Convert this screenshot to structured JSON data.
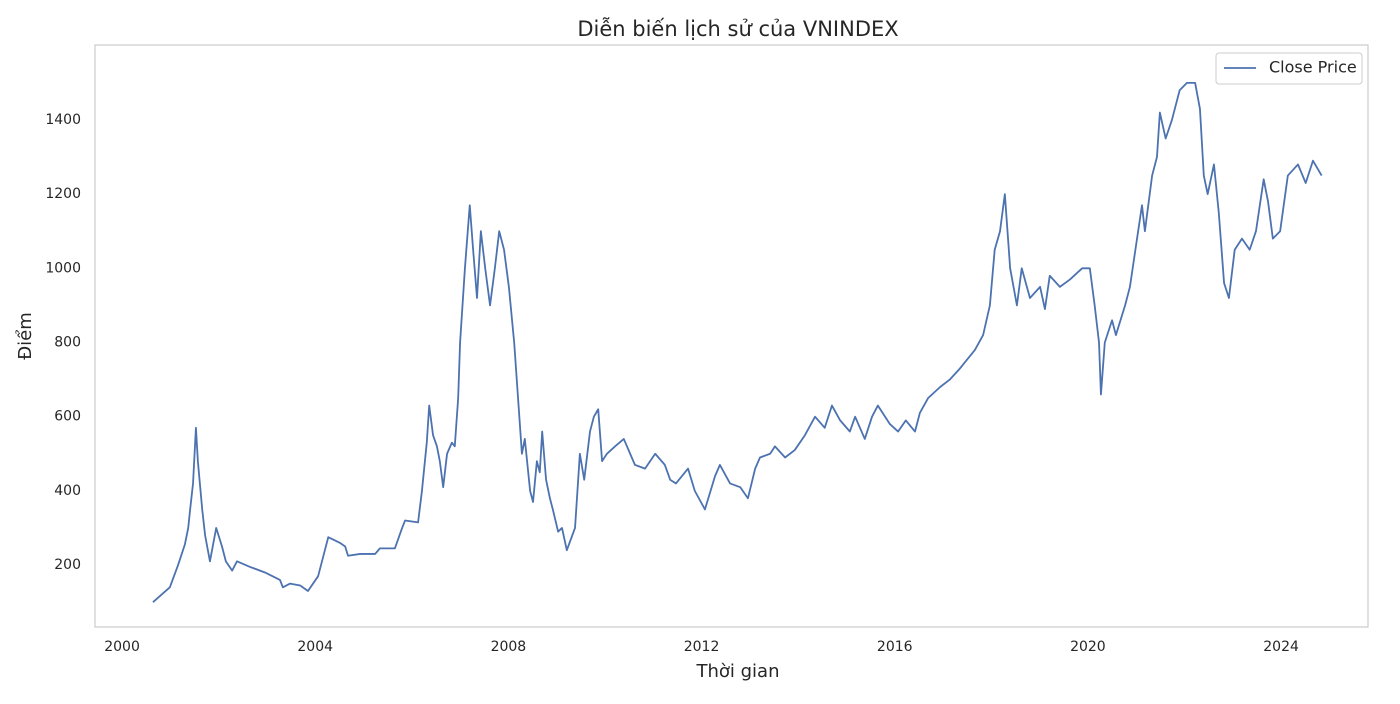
{
  "chart_data": {
    "type": "line",
    "title": "Diễn biến lịch sử của VNINDEX",
    "x_label": "Thời gian",
    "y_label": "Điểm",
    "xlim": [
      1999.44,
      2025.8
    ],
    "ylim": [
      33,
      1602
    ],
    "xticks": [
      2000,
      2004,
      2008,
      2012,
      2016,
      2020,
      2024
    ],
    "yticks": [
      200,
      400,
      600,
      800,
      1000,
      1200,
      1400
    ],
    "grid": false,
    "legend": "upper right",
    "x": [
      2000.64,
      2000.99,
      2001.16,
      2001.3,
      2001.37,
      2001.41,
      2001.47,
      2001.53,
      2001.57,
      2001.66,
      2001.72,
      2001.82,
      2001.95,
      2002.07,
      2002.15,
      2002.28,
      2002.38,
      2002.65,
      2002.96,
      2003.27,
      2003.33,
      2003.48,
      2003.69,
      2003.85,
      2004.06,
      2004.18,
      2004.27,
      2004.51,
      2004.62,
      2004.68,
      2004.93,
      2005.24,
      2005.34,
      2005.65,
      2005.8,
      2005.86,
      2006.13,
      2006.21,
      2006.31,
      2006.36,
      2006.44,
      2006.52,
      2006.58,
      2006.65,
      2006.73,
      2006.83,
      2006.89,
      2006.96,
      2007.0,
      2007.1,
      2007.2,
      2007.27,
      2007.35,
      2007.43,
      2007.52,
      2007.62,
      2007.72,
      2007.81,
      2007.91,
      2008.01,
      2008.12,
      2008.2,
      2008.28,
      2008.34,
      2008.45,
      2008.51,
      2008.59,
      2008.65,
      2008.7,
      2008.78,
      2008.86,
      2008.92,
      2009.03,
      2009.11,
      2009.21,
      2009.38,
      2009.48,
      2009.57,
      2009.69,
      2009.77,
      2009.86,
      2009.94,
      2010.04,
      2010.21,
      2010.39,
      2010.62,
      2010.83,
      2011.04,
      2011.24,
      2011.35,
      2011.47,
      2011.72,
      2011.86,
      2012.07,
      2012.28,
      2012.38,
      2012.59,
      2012.8,
      2012.96,
      2013.11,
      2013.21,
      2013.42,
      2013.52,
      2013.73,
      2013.93,
      2014.14,
      2014.35,
      2014.55,
      2014.7,
      2014.87,
      2015.07,
      2015.18,
      2015.38,
      2015.53,
      2015.65,
      2015.9,
      2016.07,
      2016.23,
      2016.42,
      2016.52,
      2016.69,
      2016.94,
      2017.14,
      2017.35,
      2017.66,
      2017.83,
      2017.97,
      2018.07,
      2018.18,
      2018.28,
      2018.39,
      2018.53,
      2018.63,
      2018.8,
      2019.01,
      2019.11,
      2019.21,
      2019.42,
      2019.63,
      2019.88,
      2020.04,
      2020.14,
      2020.23,
      2020.27,
      2020.35,
      2020.5,
      2020.58,
      2020.77,
      2020.87,
      2021.04,
      2021.12,
      2021.18,
      2021.33,
      2021.43,
      2021.49,
      2021.61,
      2021.74,
      2021.9,
      2022.05,
      2022.22,
      2022.32,
      2022.4,
      2022.48,
      2022.61,
      2022.71,
      2022.82,
      2022.92,
      2023.04,
      2023.19,
      2023.35,
      2023.48,
      2023.64,
      2023.73,
      2023.83,
      2023.98,
      2024.14,
      2024.35,
      2024.51,
      2024.66,
      2024.84
    ],
    "series": [
      {
        "name": "Close Price",
        "color": "#4c72b0",
        "values": [
          100,
          140,
          200,
          255,
          300,
          350,
          420,
          570,
          480,
          350,
          280,
          210,
          300,
          250,
          210,
          185,
          210,
          195,
          180,
          160,
          140,
          150,
          145,
          130,
          170,
          230,
          275,
          260,
          250,
          225,
          230,
          230,
          245,
          245,
          300,
          320,
          315,
          400,
          530,
          630,
          550,
          520,
          480,
          410,
          500,
          530,
          520,
          650,
          800,
          1000,
          1170,
          1050,
          920,
          1100,
          1000,
          900,
          1000,
          1100,
          1050,
          950,
          800,
          650,
          500,
          540,
          400,
          370,
          480,
          450,
          560,
          430,
          380,
          350,
          290,
          300,
          240,
          300,
          500,
          430,
          560,
          600,
          620,
          480,
          500,
          520,
          540,
          470,
          460,
          500,
          470,
          430,
          420,
          460,
          400,
          350,
          440,
          470,
          420,
          410,
          380,
          460,
          490,
          500,
          520,
          490,
          510,
          550,
          600,
          570,
          630,
          590,
          560,
          600,
          540,
          600,
          630,
          580,
          560,
          590,
          560,
          610,
          650,
          680,
          700,
          730,
          780,
          820,
          900,
          1050,
          1100,
          1200,
          1000,
          900,
          1000,
          920,
          950,
          890,
          980,
          950,
          970,
          1000,
          1000,
          900,
          800,
          660,
          800,
          860,
          820,
          900,
          950,
          1100,
          1170,
          1100,
          1250,
          1300,
          1420,
          1350,
          1400,
          1480,
          1500,
          1500,
          1430,
          1250,
          1200,
          1280,
          1150,
          960,
          920,
          1050,
          1080,
          1050,
          1100,
          1240,
          1180,
          1080,
          1100,
          1250,
          1280,
          1230,
          1290,
          1250
        ]
      }
    ]
  }
}
